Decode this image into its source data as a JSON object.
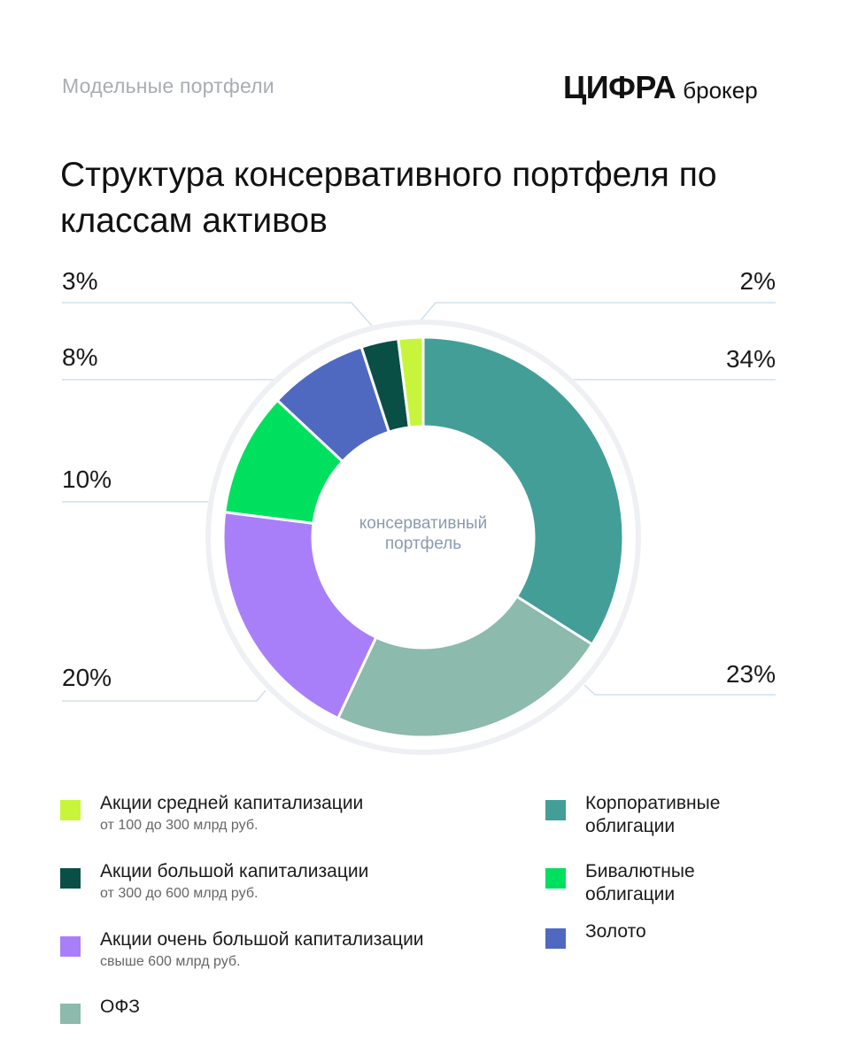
{
  "header": {
    "subtitle": "Модельные портфели",
    "logo_main": "ЦИФРА",
    "logo_sub": "брокер"
  },
  "title": "Структура консервативного портфеля по классам активов",
  "center_label": "консервативный портфель",
  "chart_data": {
    "type": "pie",
    "donut": true,
    "title": "Структура консервативного портфеля по классам активов",
    "center_text": "консервативный портфель",
    "slices": [
      {
        "label": "Корпоративные облигации",
        "value": 34,
        "display": "34%",
        "color": "#439e98"
      },
      {
        "label": "ОФЗ",
        "value": 23,
        "display": "23%",
        "color": "#8cbaad"
      },
      {
        "label": "Акции очень большой капитализации",
        "value": 20,
        "display": "20%",
        "color": "#a97ff9"
      },
      {
        "label": "Бивалютные облигации",
        "value": 10,
        "display": "10%",
        "color": "#00e05f"
      },
      {
        "label": "Золото",
        "value": 8,
        "display": "8%",
        "color": "#5069c0"
      },
      {
        "label": "Акции большой капитализации",
        "value": 3,
        "display": "3%",
        "color": "#0a4f46"
      },
      {
        "label": "Акции средней капитализации",
        "value": 2,
        "display": "2%",
        "color": "#c8f53c"
      }
    ]
  },
  "legend_left": [
    {
      "label": "Акции средней капитализации",
      "sub": "от 100 до 300 млрд руб.",
      "color": "#c8f53c"
    },
    {
      "label": "Акции большой капитализации",
      "sub": "от 300 до 600 млрд руб.",
      "color": "#0a4f46"
    },
    {
      "label": "Акции очень большой капитализации",
      "sub": "свыше 600 млрд руб.",
      "color": "#a97ff9"
    },
    {
      "label": "ОФЗ",
      "sub": "",
      "color": "#8cbaad"
    }
  ],
  "legend_right": [
    {
      "label": "Корпоративные облигации",
      "color": "#439e98"
    },
    {
      "label": "Бивалютные облигации",
      "color": "#00e05f"
    },
    {
      "label": "Золото",
      "color": "#5069c0"
    }
  ]
}
